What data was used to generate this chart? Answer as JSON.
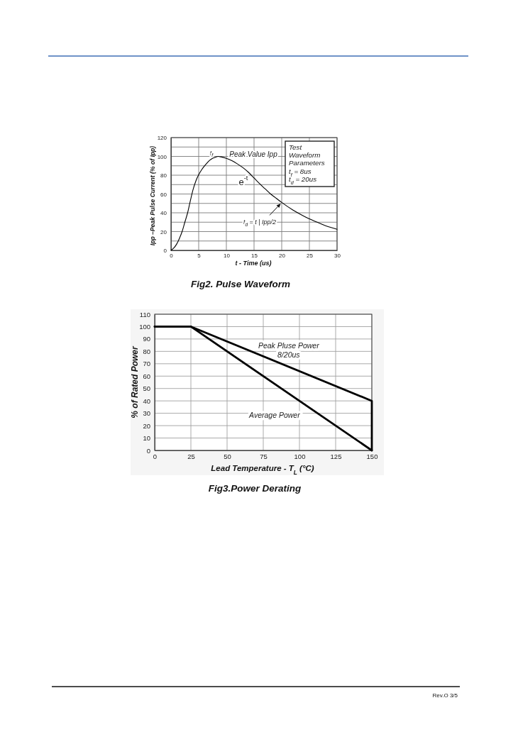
{
  "chart_data": [
    {
      "type": "line",
      "title": "Fig2. Pulse Waveform",
      "xlabel": "t - Time (us)",
      "ylabel": "Ipp –Peak Pulse Current (% of Ipp)",
      "x": [
        0,
        0.5,
        1,
        1.5,
        2,
        2.5,
        3,
        3.5,
        4,
        4.5,
        5,
        5.5,
        6,
        6.5,
        7,
        7.5,
        8,
        8.5,
        9,
        10,
        11,
        12,
        13,
        14,
        15,
        16,
        17,
        18,
        19,
        20,
        22,
        24,
        26,
        28,
        30
      ],
      "series": [
        {
          "color": "#000000",
          "values": [
            0,
            2.5,
            6.5,
            12.5,
            20,
            30,
            40,
            53,
            65,
            74,
            80.5,
            85.5,
            89.5,
            93,
            96,
            98,
            99,
            100,
            99.5,
            98,
            95.5,
            92,
            88,
            83,
            77,
            71,
            65.5,
            60,
            55.5,
            51,
            43,
            36.5,
            31,
            26,
            22.5
          ]
        }
      ],
      "xlim": [
        0,
        30
      ],
      "xticks": [
        0,
        5,
        10,
        15,
        20,
        25,
        30
      ],
      "ylim": [
        0,
        120
      ],
      "yticks": [
        0,
        {
          "value": 10,
          "label": null
        },
        20,
        {
          "value": 30,
          "label": null
        },
        40,
        {
          "value": 50,
          "label": null
        },
        60,
        {
          "value": 70,
          "label": null
        },
        80,
        {
          "value": 90,
          "label": null
        },
        100,
        {
          "value": 110,
          "label": null
        },
        120
      ],
      "grid": true,
      "marker": "none",
      "line_style": "solid",
      "annotations": [
        "t$_{f}$",
        "Peak Value Ipp",
        "e$^{-t}$",
        {
          "text": "t$_{d}$ = t | Ipp/2",
          "x": 20,
          "y": 51
        },
        "Test Waveform Parameters",
        "t$_{f}$ = 8us",
        "t$_{d}$ = 20us"
      ]
    },
    {
      "type": "line",
      "title": "Fig3.Power Derating",
      "xlabel": "Lead Temperature - T$_{L}$ (°C)",
      "ylabel": "% of Rated Power",
      "series": [
        {
          "name": "Peak Pluse Power 8/20us",
          "color": "#000000",
          "x": [
            0,
            25,
            150,
            150
          ],
          "values": [
            100,
            100,
            40,
            0
          ]
        },
        {
          "name": "Average Power",
          "color": "#000000",
          "x": [
            0,
            25,
            150
          ],
          "values": [
            100,
            100,
            0
          ]
        }
      ],
      "xlim": [
        0,
        150
      ],
      "xticks": [
        0,
        25,
        50,
        75,
        100,
        125,
        150
      ],
      "ylim": [
        0,
        110
      ],
      "yticks": [
        0,
        10,
        20,
        30,
        40,
        50,
        60,
        70,
        80,
        90,
        100,
        110
      ],
      "grid": true,
      "marker": "none",
      "line_style": "solid",
      "annotations": [
        "Rev.O 3/5"
      ]
    }
  ]
}
